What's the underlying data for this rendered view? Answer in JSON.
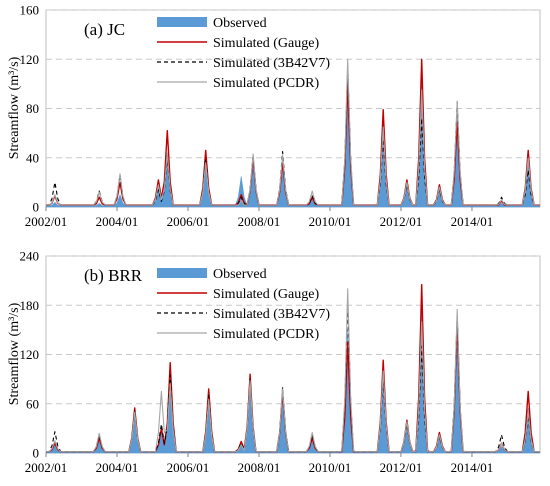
{
  "chart_data": [
    {
      "type": "area",
      "title": "(a) JC",
      "ylabel": "Streamflow (m³/s)",
      "ylim": [
        0,
        160
      ],
      "yticks": [
        "0",
        "40",
        "80",
        "120",
        "160"
      ],
      "x_start": "2002/01",
      "x_end": "2015/12",
      "xticks": [
        "2002/01",
        "2004/01",
        "2006/01",
        "2008/01",
        "2010/01",
        "2012/01",
        "2014/01"
      ],
      "grid": "horizontal dashed",
      "legend_position": "top-center",
      "peaks": [
        {
          "date": "2002/04",
          "obs": 4,
          "gauge": 9,
          "trmm": 20,
          "pcdr": 10
        },
        {
          "date": "2003/07",
          "obs": 3,
          "gauge": 8,
          "trmm": 13,
          "pcdr": 12
        },
        {
          "date": "2004/02",
          "obs": 10,
          "gauge": 20,
          "trmm": 26,
          "pcdr": 27
        },
        {
          "date": "2005/03",
          "obs": 20,
          "gauge": 22,
          "trmm": 14,
          "pcdr": 18
        },
        {
          "date": "2005/06",
          "obs": 40,
          "gauge": 62,
          "trmm": 40,
          "pcdr": 44
        },
        {
          "date": "2006/07",
          "obs": 40,
          "gauge": 46,
          "trmm": 39,
          "pcdr": 36
        },
        {
          "date": "2007/07",
          "obs": 25,
          "gauge": 10,
          "trmm": 8,
          "pcdr": 5
        },
        {
          "date": "2007/11",
          "obs": 40,
          "gauge": 40,
          "trmm": 42,
          "pcdr": 43
        },
        {
          "date": "2008/09",
          "obs": 38,
          "gauge": 37,
          "trmm": 45,
          "pcdr": 42
        },
        {
          "date": "2009/07",
          "obs": 8,
          "gauge": 8,
          "trmm": 9,
          "pcdr": 13
        },
        {
          "date": "2010/07",
          "obs": 90,
          "gauge": 100,
          "trmm": 115,
          "pcdr": 120
        },
        {
          "date": "2011/07",
          "obs": 70,
          "gauge": 79,
          "trmm": 55,
          "pcdr": 65
        },
        {
          "date": "2012/03",
          "obs": 22,
          "gauge": 22,
          "trmm": 18,
          "pcdr": 20
        },
        {
          "date": "2012/08",
          "obs": 110,
          "gauge": 120,
          "trmm": 72,
          "pcdr": 95
        },
        {
          "date": "2013/02",
          "obs": 18,
          "gauge": 18,
          "trmm": 14,
          "pcdr": 16
        },
        {
          "date": "2013/08",
          "obs": 80,
          "gauge": 69,
          "trmm": 85,
          "pcdr": 86
        },
        {
          "date": "2014/11",
          "obs": 3,
          "gauge": 5,
          "trmm": 8,
          "pcdr": 6
        },
        {
          "date": "2015/08",
          "obs": 40,
          "gauge": 46,
          "trmm": 30,
          "pcdr": 40
        }
      ],
      "series": [
        {
          "name": "Observed",
          "color": "#5b9bd5",
          "style": "filled-area",
          "peak_key": "obs"
        },
        {
          "name": "Simulated (Gauge)",
          "color": "#c00000",
          "style": "solid",
          "peak_key": "gauge"
        },
        {
          "name": "Simulated (3B42V7)",
          "color": "#000000",
          "style": "dashed",
          "peak_key": "trmm"
        },
        {
          "name": "Simulated (PCDR)",
          "color": "#a6a6a6",
          "style": "solid",
          "peak_key": "pcdr"
        }
      ]
    },
    {
      "type": "area",
      "title": "(b) BRR",
      "ylabel": "Streamflow (m³/s)",
      "ylim": [
        0,
        240
      ],
      "yticks": [
        "0",
        "60",
        "120",
        "180",
        "240"
      ],
      "x_start": "2002/01",
      "x_end": "2015/12",
      "xticks": [
        "2002/01",
        "2004/01",
        "2006/01",
        "2008/01",
        "2010/01",
        "2012/01",
        "2014/01"
      ],
      "grid": "horizontal dashed",
      "legend_position": "top-center",
      "peaks": [
        {
          "date": "2002/04",
          "obs": 10,
          "gauge": 12,
          "trmm": 26,
          "pcdr": 15
        },
        {
          "date": "2003/07",
          "obs": 15,
          "gauge": 18,
          "trmm": 22,
          "pcdr": 24
        },
        {
          "date": "2004/07",
          "obs": 50,
          "gauge": 55,
          "trmm": 52,
          "pcdr": 50
        },
        {
          "date": "2005/04",
          "obs": 25,
          "gauge": 30,
          "trmm": 35,
          "pcdr": 75
        },
        {
          "date": "2005/07",
          "obs": 95,
          "gauge": 110,
          "trmm": 95,
          "pcdr": 85
        },
        {
          "date": "2006/08",
          "obs": 70,
          "gauge": 78,
          "trmm": 70,
          "pcdr": 65
        },
        {
          "date": "2007/07",
          "obs": 15,
          "gauge": 14,
          "trmm": 12,
          "pcdr": 10
        },
        {
          "date": "2007/10",
          "obs": 85,
          "gauge": 96,
          "trmm": 90,
          "pcdr": 88
        },
        {
          "date": "2008/09",
          "obs": 70,
          "gauge": 75,
          "trmm": 80,
          "pcdr": 78
        },
        {
          "date": "2009/07",
          "obs": 20,
          "gauge": 18,
          "trmm": 22,
          "pcdr": 25
        },
        {
          "date": "2010/07",
          "obs": 150,
          "gauge": 135,
          "trmm": 185,
          "pcdr": 200
        },
        {
          "date": "2011/07",
          "obs": 100,
          "gauge": 113,
          "trmm": 90,
          "pcdr": 100
        },
        {
          "date": "2012/03",
          "obs": 40,
          "gauge": 40,
          "trmm": 35,
          "pcdr": 38
        },
        {
          "date": "2012/08",
          "obs": 175,
          "gauge": 205,
          "trmm": 130,
          "pcdr": 160
        },
        {
          "date": "2013/02",
          "obs": 25,
          "gauge": 25,
          "trmm": 20,
          "pcdr": 22
        },
        {
          "date": "2013/08",
          "obs": 150,
          "gauge": 160,
          "trmm": 168,
          "pcdr": 175
        },
        {
          "date": "2014/11",
          "obs": 8,
          "gauge": 12,
          "trmm": 22,
          "pcdr": 12
        },
        {
          "date": "2015/08",
          "obs": 55,
          "gauge": 75,
          "trmm": 45,
          "pcdr": 50
        }
      ],
      "series": [
        {
          "name": "Observed",
          "color": "#5b9bd5",
          "style": "filled-area",
          "peak_key": "obs"
        },
        {
          "name": "Simulated (Gauge)",
          "color": "#c00000",
          "style": "solid",
          "peak_key": "gauge"
        },
        {
          "name": "Simulated (3B42V7)",
          "color": "#000000",
          "style": "dashed",
          "peak_key": "trmm"
        },
        {
          "name": "Simulated (PCDR)",
          "color": "#a6a6a6",
          "style": "solid",
          "peak_key": "pcdr"
        }
      ]
    }
  ]
}
